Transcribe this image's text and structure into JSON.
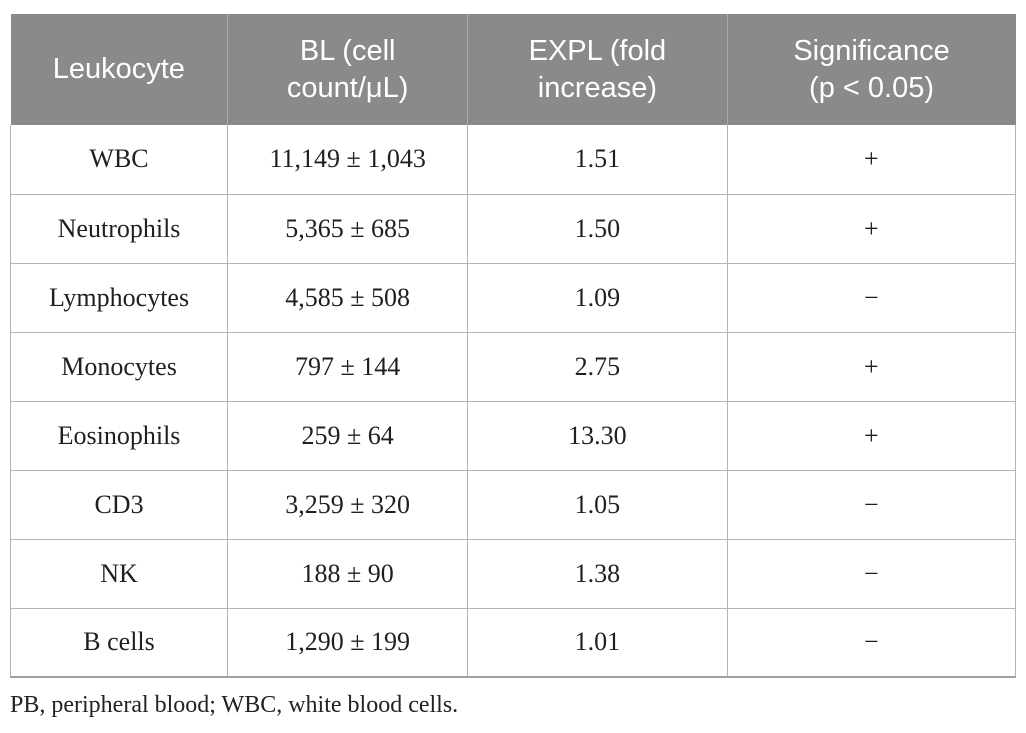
{
  "table": {
    "columns": [
      {
        "label": "Leukocyte"
      },
      {
        "label": "BL (cell\ncount/μL)"
      },
      {
        "label": "EXPL (fold\nincrease)"
      },
      {
        "label": "Significance\n(p < 0.05)"
      }
    ],
    "rows": [
      {
        "leukocyte": "WBC",
        "bl": "11,149 ± 1,043",
        "expl": "1.51",
        "significance": "+"
      },
      {
        "leukocyte": "Neutrophils",
        "bl": "5,365 ± 685",
        "expl": "1.50",
        "significance": "+"
      },
      {
        "leukocyte": "Lymphocytes",
        "bl": "4,585 ± 508",
        "expl": "1.09",
        "significance": "−"
      },
      {
        "leukocyte": "Monocytes",
        "bl": "797 ± 144",
        "expl": "2.75",
        "significance": "+"
      },
      {
        "leukocyte": "Eosinophils",
        "bl": "259 ± 64",
        "expl": "13.30",
        "significance": "+"
      },
      {
        "leukocyte": "CD3",
        "bl": "3,259 ± 320",
        "expl": "1.05",
        "significance": "−"
      },
      {
        "leukocyte": "NK",
        "bl": "188 ± 90",
        "expl": "1.38",
        "significance": "−"
      },
      {
        "leukocyte": "B cells",
        "bl": "1,290 ± 199",
        "expl": "1.01",
        "significance": "−"
      }
    ],
    "footnote": "PB, peripheral blood; WBC, white blood cells.",
    "colors": {
      "header_bg": "#8a8a8a",
      "header_text": "#ffffff",
      "grid_line": "#b3b3b3",
      "body_text": "#1f1f1f"
    }
  }
}
